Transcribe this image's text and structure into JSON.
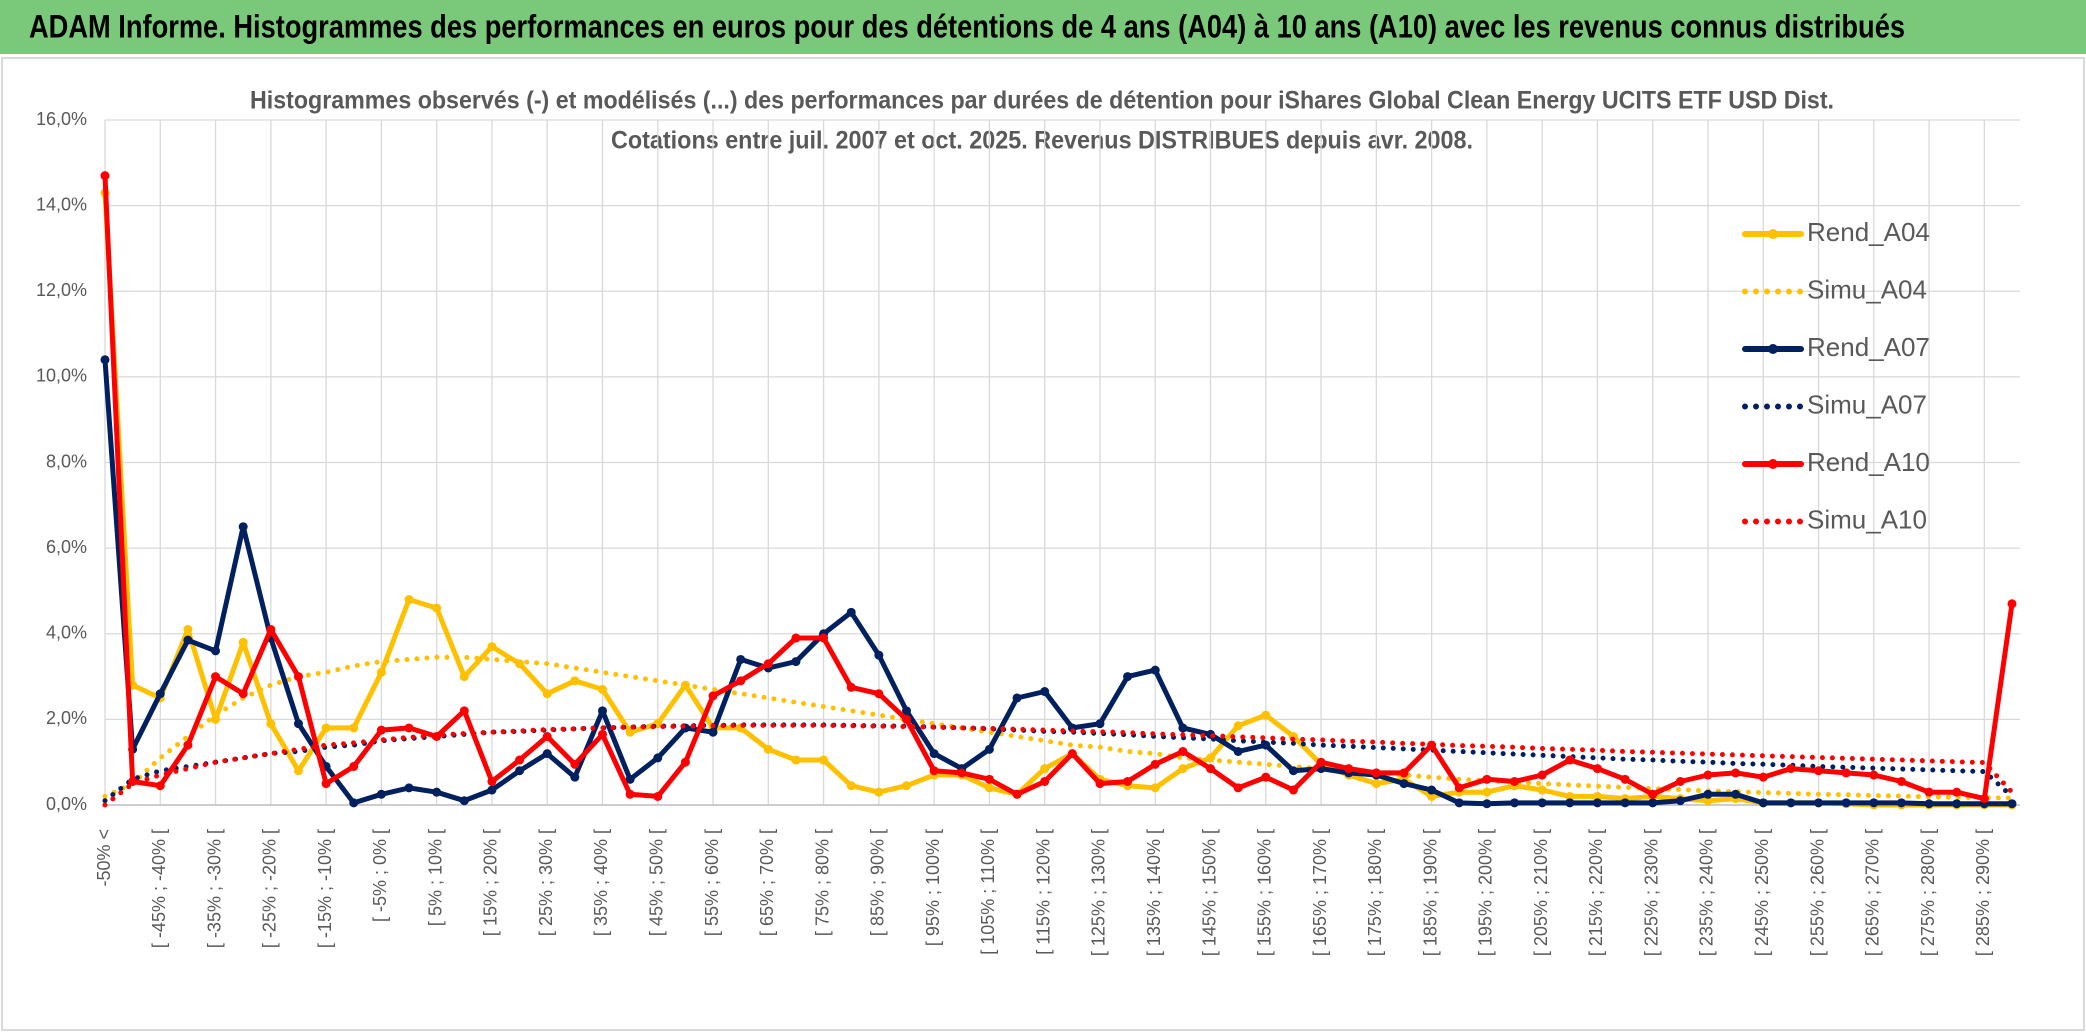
{
  "chart_data": {
    "type": "line",
    "header": "ADAM Informe. Histogrammes des performances en euros pour des détentions de 4 ans (A04) à 10 ans (A10) avec les revenus connus distribués",
    "title": "Histogrammes observés (-) et modélisés (...) des performances par durées de détention pour iShares Global Clean Energy UCITS ETF USD Dist.",
    "subtitle": "Cotations entre juil. 2007 et oct. 2025. Revenus DISTRIBUES depuis avr. 2008.",
    "categories": [
      "-50% <",
      null,
      "[ -45% ; -40% [",
      null,
      "[ -35% ; -30% [",
      null,
      "[ -25% ; -20% [",
      null,
      "[ -15% ; -10% [",
      null,
      "[ -5% ; 0% [",
      null,
      "[ 5% ; 10% [",
      null,
      "[ 15% ; 20% [",
      null,
      "[ 25% ; 30% [",
      null,
      "[ 35% ; 40% [",
      null,
      "[ 45% ; 50% [",
      null,
      "[ 55% ; 60% [",
      null,
      "[ 65% ; 70% [",
      null,
      "[ 75% ; 80% [",
      null,
      "[ 85% ; 90% [",
      null,
      "[ 95% ; 100% [",
      null,
      "[ 105% ; 110% [",
      null,
      "[ 115% ; 120% [",
      null,
      "[ 125% ; 130% [",
      null,
      "[ 135% ; 140% [",
      null,
      "[ 145% ; 150% [",
      null,
      "[ 155% ; 160% [",
      null,
      "[ 165% ; 170% [",
      null,
      "[ 175% ; 180% [",
      null,
      "[ 185% ; 190% [",
      null,
      "[ 195% ; 200% [",
      null,
      "[ 205% ; 210% [",
      null,
      "[ 215% ; 220% [",
      null,
      "[ 225% ; 230% [",
      null,
      "[ 235% ; 240% [",
      null,
      "[ 245% ; 250% [",
      null,
      "[ 255% ; 260% [",
      null,
      "[ 265% ; 270% [",
      null,
      "[ 275% ; 280% [",
      null,
      "[ 285% ; 290% [",
      null
    ],
    "series": [
      {
        "name": "Rend_A04",
        "color": "#ffc000",
        "style": "solid",
        "markers": true,
        "values": [
          14.3,
          2.8,
          2.5,
          4.1,
          2.0,
          3.8,
          1.9,
          0.8,
          1.8,
          1.8,
          3.1,
          4.8,
          4.6,
          3.0,
          3.7,
          3.3,
          2.6,
          2.9,
          2.7,
          1.7,
          1.9,
          2.8,
          1.8,
          1.8,
          1.3,
          1.05,
          1.05,
          0.45,
          0.3,
          0.45,
          0.7,
          0.7,
          0.4,
          0.25,
          0.85,
          1.2,
          0.6,
          0.45,
          0.4,
          0.85,
          1.1,
          1.85,
          2.1,
          1.6,
          0.95,
          0.7,
          0.5,
          0.6,
          0.2,
          0.3,
          0.3,
          0.45,
          0.35,
          0.2,
          0.2,
          0.15,
          0.2,
          0.15,
          0.1,
          0.15,
          0.05,
          0.05,
          0.05,
          0.03,
          0,
          0,
          0,
          0,
          0,
          0
        ]
      },
      {
        "name": "Simu_A04",
        "color": "#ffc000",
        "style": "dotted",
        "markers": false,
        "values": [
          0.2,
          0.5,
          1.1,
          1.6,
          2.1,
          2.5,
          2.8,
          3.0,
          3.1,
          3.25,
          3.35,
          3.4,
          3.45,
          3.45,
          3.4,
          3.35,
          3.3,
          3.2,
          3.1,
          3.0,
          2.9,
          2.8,
          2.7,
          2.6,
          2.5,
          2.4,
          2.3,
          2.2,
          2.1,
          2.0,
          1.9,
          1.8,
          1.7,
          1.6,
          1.5,
          1.4,
          1.35,
          1.25,
          1.2,
          1.1,
          1.05,
          1.0,
          0.95,
          0.9,
          0.85,
          0.8,
          0.75,
          0.7,
          0.65,
          0.6,
          0.57,
          0.53,
          0.5,
          0.47,
          0.44,
          0.41,
          0.38,
          0.36,
          0.33,
          0.31,
          0.29,
          0.27,
          0.25,
          0.24,
          0.22,
          0.21,
          0.19,
          0.18,
          0.17,
          0.16
        ]
      },
      {
        "name": "Rend_A07",
        "color": "#002060",
        "style": "solid",
        "markers": true,
        "values": [
          10.4,
          1.3,
          2.6,
          3.85,
          3.6,
          6.5,
          3.9,
          1.9,
          0.9,
          0.05,
          0.25,
          0.4,
          0.3,
          0.1,
          0.35,
          0.8,
          1.2,
          0.65,
          2.2,
          0.6,
          1.1,
          1.8,
          1.7,
          3.4,
          3.2,
          3.35,
          4.0,
          4.5,
          3.5,
          2.2,
          1.2,
          0.85,
          1.3,
          2.5,
          2.65,
          1.8,
          1.9,
          3.0,
          3.15,
          1.8,
          1.65,
          1.25,
          1.4,
          0.8,
          0.85,
          0.75,
          0.7,
          0.5,
          0.35,
          0.05,
          0.03,
          0.05,
          0.05,
          0.05,
          0.05,
          0.05,
          0.05,
          0.1,
          0.25,
          0.25,
          0.05,
          0.05,
          0.05,
          0.05,
          0.05,
          0.05,
          0.03,
          0.03,
          0.03,
          0.03
        ]
      },
      {
        "name": "Simu_A07",
        "color": "#002060",
        "style": "dotted",
        "markers": false,
        "values": [
          0.1,
          0.6,
          0.8,
          0.9,
          1.0,
          1.1,
          1.2,
          1.25,
          1.35,
          1.4,
          1.5,
          1.55,
          1.6,
          1.65,
          1.7,
          1.72,
          1.75,
          1.78,
          1.8,
          1.82,
          1.84,
          1.85,
          1.86,
          1.87,
          1.87,
          1.87,
          1.87,
          1.86,
          1.85,
          1.84,
          1.82,
          1.8,
          1.78,
          1.75,
          1.72,
          1.7,
          1.67,
          1.64,
          1.6,
          1.57,
          1.54,
          1.5,
          1.47,
          1.44,
          1.4,
          1.37,
          1.34,
          1.31,
          1.28,
          1.25,
          1.22,
          1.19,
          1.16,
          1.13,
          1.1,
          1.07,
          1.05,
          1.02,
          1.0,
          0.97,
          0.95,
          0.93,
          0.9,
          0.88,
          0.86,
          0.84,
          0.82,
          0.8,
          0.78,
          0.2
        ]
      },
      {
        "name": "Rend_A10",
        "color": "#ff0000",
        "style": "solid",
        "markers": true,
        "values": [
          14.7,
          0.55,
          0.45,
          1.4,
          3.0,
          2.6,
          4.1,
          3.0,
          0.5,
          0.9,
          1.75,
          1.8,
          1.6,
          2.2,
          0.55,
          1.05,
          1.6,
          0.95,
          1.65,
          0.25,
          0.2,
          1.0,
          2.55,
          2.9,
          3.3,
          3.9,
          3.9,
          2.75,
          2.6,
          2.0,
          0.8,
          0.75,
          0.6,
          0.25,
          0.55,
          1.2,
          0.5,
          0.55,
          0.95,
          1.25,
          0.85,
          0.4,
          0.65,
          0.35,
          1.0,
          0.85,
          0.75,
          0.75,
          1.4,
          0.4,
          0.6,
          0.55,
          0.7,
          1.05,
          0.85,
          0.6,
          0.25,
          0.55,
          0.7,
          0.75,
          0.65,
          0.85,
          0.8,
          0.75,
          0.7,
          0.55,
          0.3,
          0.3,
          0.15,
          4.7
        ]
      },
      {
        "name": "Simu_A10",
        "color": "#ff0000",
        "style": "dotted",
        "markers": false,
        "values": [
          0.0,
          0.5,
          0.7,
          0.85,
          1.0,
          1.1,
          1.2,
          1.3,
          1.4,
          1.45,
          1.52,
          1.58,
          1.63,
          1.67,
          1.7,
          1.73,
          1.76,
          1.78,
          1.8,
          1.82,
          1.83,
          1.84,
          1.85,
          1.86,
          1.86,
          1.86,
          1.86,
          1.85,
          1.84,
          1.83,
          1.82,
          1.8,
          1.79,
          1.77,
          1.75,
          1.73,
          1.71,
          1.69,
          1.66,
          1.64,
          1.62,
          1.59,
          1.57,
          1.54,
          1.52,
          1.49,
          1.47,
          1.44,
          1.42,
          1.39,
          1.37,
          1.35,
          1.32,
          1.3,
          1.28,
          1.25,
          1.23,
          1.21,
          1.19,
          1.17,
          1.15,
          1.13,
          1.11,
          1.09,
          1.07,
          1.05,
          1.03,
          1.01,
          0.99,
          0.3
        ]
      }
    ],
    "ylim": [
      0,
      16
    ],
    "yticks": [
      {
        "value": 0,
        "label": "0,0%"
      },
      {
        "value": 2,
        "label": "2,0%"
      },
      {
        "value": 4,
        "label": "4,0%"
      },
      {
        "value": 6,
        "label": "6,0%"
      },
      {
        "value": 8,
        "label": "8,0%"
      },
      {
        "value": 10,
        "label": "10,0%"
      },
      {
        "value": 12,
        "label": "12,0%"
      },
      {
        "value": 14,
        "label": "14,0%"
      },
      {
        "value": 16,
        "label": "16,0%"
      }
    ],
    "grid": true,
    "legend": "right"
  }
}
